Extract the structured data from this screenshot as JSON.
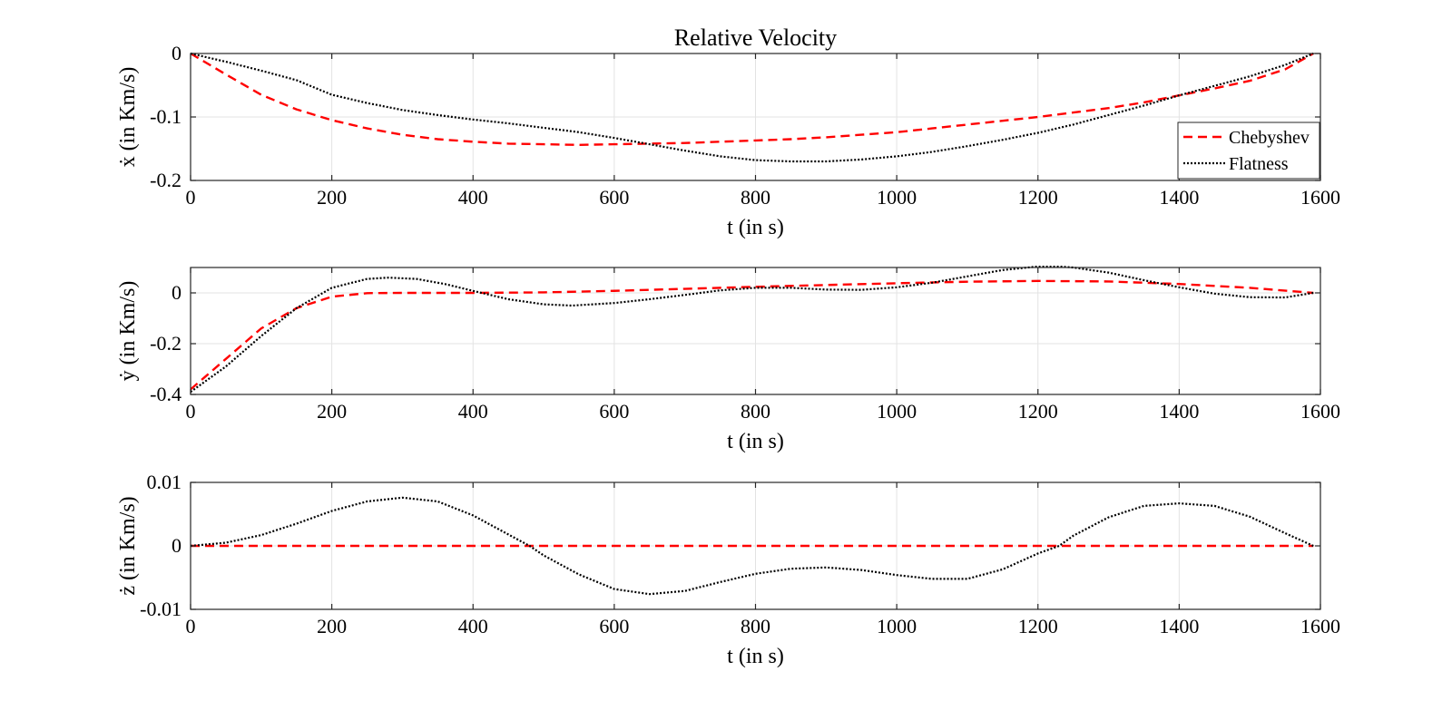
{
  "chart_data": [
    {
      "type": "line",
      "title": "Relative Velocity",
      "xlabel": "t (in s)",
      "ylabel": "ẋ (in Km/s)",
      "xlim": [
        0,
        1600
      ],
      "ylim": [
        -0.2,
        0
      ],
      "xticks": [
        0,
        200,
        400,
        600,
        800,
        1000,
        1200,
        1400,
        1600
      ],
      "xtick_labels": [
        "0",
        "200",
        "400",
        "600",
        "800",
        "1000",
        "1200",
        "1400",
        "1600"
      ],
      "yticks": [
        -0.2,
        -0.1,
        0
      ],
      "ytick_labels": [
        "-0.2",
        "-0.1",
        "0"
      ],
      "grid": true,
      "legend": {
        "location": "right",
        "entries": [
          "Chebyshev",
          "Flatness"
        ]
      },
      "series": [
        {
          "name": "Chebyshev",
          "style": "dashed",
          "color": "#ff0000",
          "x": [
            0,
            50,
            100,
            150,
            200,
            250,
            300,
            350,
            400,
            450,
            500,
            550,
            600,
            650,
            700,
            750,
            800,
            850,
            900,
            950,
            1000,
            1050,
            1100,
            1150,
            1200,
            1250,
            1300,
            1350,
            1400,
            1450,
            1500,
            1550,
            1590
          ],
          "y": [
            0,
            -0.033,
            -0.065,
            -0.088,
            -0.105,
            -0.118,
            -0.128,
            -0.135,
            -0.139,
            -0.142,
            -0.143,
            -0.144,
            -0.143,
            -0.142,
            -0.141,
            -0.139,
            -0.137,
            -0.135,
            -0.132,
            -0.128,
            -0.124,
            -0.118,
            -0.112,
            -0.106,
            -0.1,
            -0.093,
            -0.086,
            -0.077,
            -0.066,
            -0.055,
            -0.043,
            -0.025,
            0
          ]
        },
        {
          "name": "Flatness",
          "style": "dotted",
          "color": "#000000",
          "x": [
            0,
            50,
            100,
            150,
            200,
            250,
            300,
            350,
            400,
            450,
            500,
            550,
            600,
            650,
            700,
            750,
            800,
            850,
            900,
            950,
            1000,
            1050,
            1100,
            1150,
            1200,
            1250,
            1300,
            1350,
            1400,
            1450,
            1500,
            1550,
            1590
          ],
          "y": [
            0,
            -0.013,
            -0.027,
            -0.042,
            -0.065,
            -0.078,
            -0.089,
            -0.097,
            -0.104,
            -0.11,
            -0.117,
            -0.124,
            -0.133,
            -0.143,
            -0.153,
            -0.162,
            -0.168,
            -0.17,
            -0.17,
            -0.167,
            -0.162,
            -0.155,
            -0.146,
            -0.136,
            -0.125,
            -0.112,
            -0.097,
            -0.082,
            -0.066,
            -0.051,
            -0.036,
            -0.018,
            0
          ]
        }
      ]
    },
    {
      "type": "line",
      "xlabel": "t (in s)",
      "ylabel": "ẏ (in Km/s)",
      "xlim": [
        0,
        1600
      ],
      "ylim": [
        -0.4,
        0.1
      ],
      "xticks": [
        0,
        200,
        400,
        600,
        800,
        1000,
        1200,
        1400,
        1600
      ],
      "xtick_labels": [
        "0",
        "200",
        "400",
        "600",
        "800",
        "1000",
        "1200",
        "1400",
        "1600"
      ],
      "yticks": [
        -0.4,
        -0.2,
        0
      ],
      "ytick_labels": [
        "-0.4",
        "-0.2",
        "0"
      ],
      "grid": true,
      "series": [
        {
          "name": "Chebyshev",
          "style": "dashed",
          "color": "#ff0000",
          "x": [
            0,
            50,
            100,
            150,
            200,
            250,
            300,
            350,
            400,
            500,
            600,
            700,
            800,
            900,
            1000,
            1100,
            1200,
            1300,
            1400,
            1500,
            1590
          ],
          "y": [
            -0.38,
            -0.26,
            -0.14,
            -0.06,
            -0.015,
            -0.001,
            0,
            0,
            0,
            0.002,
            0.008,
            0.016,
            0.024,
            0.031,
            0.038,
            0.044,
            0.047,
            0.045,
            0.035,
            0.02,
            0
          ]
        },
        {
          "name": "Flatness",
          "style": "dotted",
          "color": "#000000",
          "x": [
            0,
            50,
            100,
            150,
            200,
            250,
            280,
            320,
            360,
            400,
            450,
            500,
            540,
            600,
            650,
            700,
            750,
            800,
            850,
            900,
            950,
            1000,
            1050,
            1100,
            1150,
            1200,
            1220,
            1250,
            1300,
            1350,
            1400,
            1450,
            1500,
            1550,
            1590
          ],
          "y": [
            -0.39,
            -0.29,
            -0.17,
            -0.06,
            0.02,
            0.055,
            0.06,
            0.055,
            0.035,
            0.008,
            -0.025,
            -0.045,
            -0.05,
            -0.04,
            -0.025,
            -0.008,
            0.01,
            0.02,
            0.02,
            0.013,
            0.012,
            0.022,
            0.04,
            0.065,
            0.09,
            0.104,
            0.106,
            0.1,
            0.08,
            0.05,
            0.022,
            -0.003,
            -0.017,
            -0.018,
            0
          ]
        }
      ]
    },
    {
      "type": "line",
      "xlabel": "t (in s)",
      "ylabel": "ż (in Km/s)",
      "xlim": [
        0,
        1600
      ],
      "ylim": [
        -0.01,
        0.01
      ],
      "xticks": [
        0,
        200,
        400,
        600,
        800,
        1000,
        1200,
        1400,
        1600
      ],
      "xtick_labels": [
        "0",
        "200",
        "400",
        "600",
        "800",
        "1000",
        "1200",
        "1400",
        "1600"
      ],
      "yticks": [
        -0.01,
        0,
        0.01
      ],
      "ytick_labels": [
        "-0.01",
        "0",
        "0.01"
      ],
      "grid": true,
      "series": [
        {
          "name": "Chebyshev",
          "style": "dashed",
          "color": "#ff0000",
          "x": [
            0,
            1590
          ],
          "y": [
            0,
            0
          ]
        },
        {
          "name": "Flatness",
          "style": "dotted",
          "color": "#000000",
          "x": [
            0,
            50,
            100,
            150,
            200,
            250,
            300,
            350,
            400,
            450,
            480,
            500,
            550,
            600,
            650,
            700,
            750,
            800,
            850,
            900,
            950,
            1000,
            1050,
            1100,
            1150,
            1200,
            1230,
            1250,
            1300,
            1350,
            1400,
            1450,
            1500,
            1550,
            1590
          ],
          "y": [
            0,
            0.0005,
            0.0017,
            0.0035,
            0.0055,
            0.007,
            0.0076,
            0.007,
            0.0048,
            0.0018,
            0,
            -0.0015,
            -0.0045,
            -0.0068,
            -0.0076,
            -0.0071,
            -0.0057,
            -0.0044,
            -0.0036,
            -0.0034,
            -0.0038,
            -0.0046,
            -0.0052,
            -0.0052,
            -0.0037,
            -0.0012,
            0,
            0.0016,
            0.0045,
            0.0063,
            0.0067,
            0.0063,
            0.0046,
            0.002,
            0
          ]
        }
      ]
    }
  ]
}
